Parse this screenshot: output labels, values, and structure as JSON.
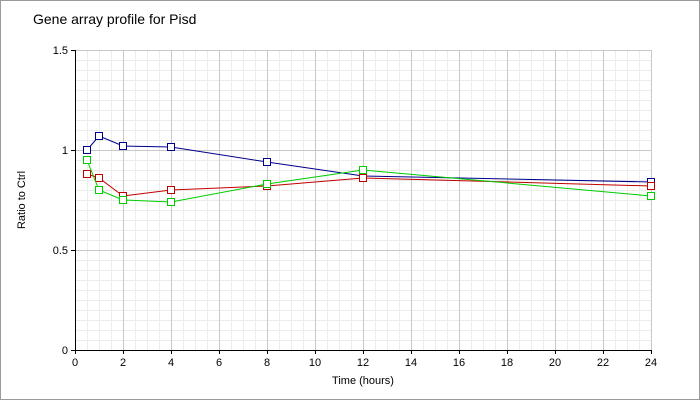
{
  "chart_data": {
    "type": "line",
    "title": "Gene array profile for Pisd",
    "xlabel": "Time (hours)",
    "ylabel": "Ratio to Ctrl",
    "xlim": [
      0,
      24
    ],
    "ylim": [
      0,
      1.5
    ],
    "x_ticks": [
      0,
      2,
      4,
      6,
      8,
      10,
      12,
      14,
      16,
      18,
      20,
      22,
      24
    ],
    "y_ticks": [
      0,
      0.5,
      1,
      1.5
    ],
    "y_tick_labels": [
      "0",
      "0.5",
      "1",
      "1.5"
    ],
    "grid": true,
    "series": [
      {
        "color": "#00008b",
        "x": [
          0.5,
          1,
          2,
          4,
          8,
          12,
          24
        ],
        "values": [
          1.0,
          1.07,
          1.02,
          1.015,
          0.94,
          0.87,
          0.84
        ]
      },
      {
        "color": "#c00000",
        "x": [
          0.5,
          1,
          2,
          4,
          8,
          12,
          24
        ],
        "values": [
          0.88,
          0.86,
          0.77,
          0.8,
          0.82,
          0.86,
          0.82
        ]
      },
      {
        "color": "#00cc00",
        "x": [
          0.5,
          1,
          2,
          4,
          8,
          12,
          24
        ],
        "values": [
          0.95,
          0.8,
          0.75,
          0.74,
          0.83,
          0.9,
          0.77
        ]
      }
    ]
  }
}
